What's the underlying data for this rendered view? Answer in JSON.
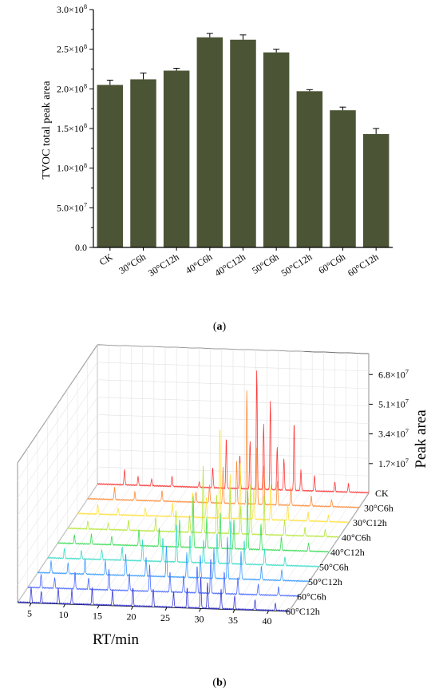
{
  "chart_data": [
    {
      "type": "bar",
      "panel_label": "a",
      "ylabel": "TVOC total peak area",
      "categories": [
        "CK",
        "30°C6h",
        "30°C12h",
        "40°C6h",
        "40°C12h",
        "50°C6h",
        "50°C12h",
        "60°C6h",
        "60°C12h"
      ],
      "values": [
        205000000.0,
        212000000.0,
        223000000.0,
        265000000.0,
        262000000.0,
        246000000.0,
        197000000.0,
        173000000.0,
        143000000.0
      ],
      "errors": [
        6000000.0,
        8000000.0,
        3000000.0,
        5000000.0,
        6000000.0,
        4000000.0,
        2000000.0,
        4000000.0,
        7000000.0
      ],
      "ylim": [
        0,
        300000000.0
      ],
      "yticks": [
        {
          "value": 0,
          "mantissa": "0.0",
          "exp": ""
        },
        {
          "value": 50000000.0,
          "mantissa": "5.0×10",
          "exp": "7"
        },
        {
          "value": 100000000.0,
          "mantissa": "1.0×10",
          "exp": "8"
        },
        {
          "value": 150000000.0,
          "mantissa": "1.5×10",
          "exp": "8"
        },
        {
          "value": 200000000.0,
          "mantissa": "2.0×10",
          "exp": "8"
        },
        {
          "value": 250000000.0,
          "mantissa": "2.5×10",
          "exp": "8"
        },
        {
          "value": 300000000.0,
          "mantissa": "3.0×10",
          "exp": "8"
        }
      ],
      "bar_color": "#4b5535"
    },
    {
      "type": "line",
      "style": "3d-waterfall",
      "panel_label": "b",
      "xlabel": "RT/min",
      "zlabel": "Peak area",
      "x_ticks": [
        5,
        10,
        15,
        20,
        25,
        30,
        35,
        40
      ],
      "xlim": [
        3,
        43
      ],
      "z_ticks": [
        {
          "value": 17000000.0,
          "mantissa": "1.7×10",
          "exp": "7"
        },
        {
          "value": 34000000.0,
          "mantissa": "3.4×10",
          "exp": "7"
        },
        {
          "value": 51000000.0,
          "mantissa": "5.1×10",
          "exp": "7"
        },
        {
          "value": 68000000.0,
          "mantissa": "6.8×10",
          "exp": "7"
        }
      ],
      "zlim": [
        0,
        80000000.0
      ],
      "series": [
        {
          "name": "CK",
          "color": "#ff3b3b",
          "peaks": [
            [
              7,
              9000000.0
            ],
            [
              9,
              5000000.0
            ],
            [
              11,
              4000000.0
            ],
            [
              14,
              6000000.0
            ],
            [
              18,
              3000000.0
            ],
            [
              20,
              12000000.0
            ],
            [
              22,
              30000000.0
            ],
            [
              24,
              20000000.0
            ],
            [
              25.5,
              28000000.0
            ],
            [
              26.5,
              69000000.0
            ],
            [
              27.5,
              38000000.0
            ],
            [
              28.5,
              52000000.0
            ],
            [
              29.5,
              25000000.0
            ],
            [
              30.5,
              18000000.0
            ],
            [
              32,
              40000000.0
            ],
            [
              33,
              12000000.0
            ],
            [
              35,
              9000000.0
            ],
            [
              38,
              6000000.0
            ],
            [
              40,
              5000000.0
            ]
          ]
        },
        {
          "name": "30°C6h",
          "color": "#ff8c3b",
          "peaks": [
            [
              7,
              7000000.0
            ],
            [
              10,
              5000000.0
            ],
            [
              14,
              6000000.0
            ],
            [
              19,
              6000000.0
            ],
            [
              21,
              10000000.0
            ],
            [
              23,
              21000000.0
            ],
            [
              25,
              24000000.0
            ],
            [
              26.5,
              66000000.0
            ],
            [
              28,
              35000000.0
            ],
            [
              29,
              22000000.0
            ],
            [
              31,
              14000000.0
            ],
            [
              33,
              10000000.0
            ],
            [
              36,
              6000000.0
            ],
            [
              39,
              4000000.0
            ]
          ]
        },
        {
          "name": "30°C12h",
          "color": "#ffe03b",
          "peaks": [
            [
              6,
              6000000.0
            ],
            [
              9,
              4000000.0
            ],
            [
              13,
              5000000.0
            ],
            [
              17,
              8000000.0
            ],
            [
              20,
              15000000.0
            ],
            [
              22,
              12000000.0
            ],
            [
              24,
              55000000.0
            ],
            [
              25.5,
              26000000.0
            ],
            [
              27,
              32000000.0
            ],
            [
              29,
              18000000.0
            ],
            [
              31.5,
              20000000.0
            ],
            [
              34,
              10000000.0
            ],
            [
              37,
              5000000.0
            ],
            [
              40,
              4000000.0
            ]
          ]
        },
        {
          "name": "40°C6h",
          "color": "#b6e63b",
          "peaks": [
            [
              6,
              5000000.0
            ],
            [
              9,
              4000000.0
            ],
            [
              12,
              6000000.0
            ],
            [
              16,
              8000000.0
            ],
            [
              19,
              12000000.0
            ],
            [
              21,
              10000000.0
            ],
            [
              23,
              38000000.0
            ],
            [
              25,
              22000000.0
            ],
            [
              27,
              26000000.0
            ],
            [
              28.5,
              16000000.0
            ],
            [
              30,
              30000000.0
            ],
            [
              32,
              24000000.0
            ],
            [
              35,
              9000000.0
            ],
            [
              38,
              5000000.0
            ],
            [
              41,
              4000000.0
            ]
          ]
        },
        {
          "name": "40°C12h",
          "color": "#3bdc57",
          "peaks": [
            [
              5.5,
              5000000.0
            ],
            [
              8,
              6000000.0
            ],
            [
              11,
              5000000.0
            ],
            [
              15,
              9000000.0
            ],
            [
              18,
              11000000.0
            ],
            [
              21,
              16000000.0
            ],
            [
              23,
              29000000.0
            ],
            [
              25,
              18000000.0
            ],
            [
              27,
              20000000.0
            ],
            [
              29,
              17000000.0
            ],
            [
              31,
              33000000.0
            ],
            [
              33,
              15000000.0
            ],
            [
              36,
              8000000.0
            ],
            [
              40,
              5000000.0
            ]
          ]
        },
        {
          "name": "50°C6h",
          "color": "#3bdcc8",
          "peaks": [
            [
              5.5,
              6000000.0
            ],
            [
              8,
              5000000.0
            ],
            [
              11,
              6000000.0
            ],
            [
              14,
              8000000.0
            ],
            [
              17,
              12000000.0
            ],
            [
              20,
              14000000.0
            ],
            [
              22,
              23000000.0
            ],
            [
              24,
              16000000.0
            ],
            [
              26,
              14000000.0
            ],
            [
              28,
              18000000.0
            ],
            [
              30,
              26000000.0
            ],
            [
              32,
              14000000.0
            ],
            [
              35,
              9000000.0
            ],
            [
              38,
              5000000.0
            ]
          ]
        },
        {
          "name": "50°C12h",
          "color": "#3b9bff",
          "peaks": [
            [
              5,
              7000000.0
            ],
            [
              7.5,
              6000000.0
            ],
            [
              10,
              9000000.0
            ],
            [
              13,
              8000000.0
            ],
            [
              16,
              13000000.0
            ],
            [
              19,
              11000000.0
            ],
            [
              22,
              19000000.0
            ],
            [
              25,
              14000000.0
            ],
            [
              27,
              13000000.0
            ],
            [
              29,
              17000000.0
            ],
            [
              31,
              24000000.0
            ],
            [
              33,
              16000000.0
            ],
            [
              36,
              8000000.0
            ],
            [
              39,
              6000000.0
            ]
          ]
        },
        {
          "name": "60°C6h",
          "color": "#4b6bff",
          "peaks": [
            [
              5,
              8000000.0
            ],
            [
              7,
              6000000.0
            ],
            [
              10,
              10000000.0
            ],
            [
              12,
              7000000.0
            ],
            [
              15,
              12000000.0
            ],
            [
              18,
              10000000.0
            ],
            [
              21,
              15000000.0
            ],
            [
              24,
              12000000.0
            ],
            [
              26,
              10000000.0
            ],
            [
              28,
              16000000.0
            ],
            [
              30,
              21000000.0
            ],
            [
              32,
              13000000.0
            ],
            [
              34,
              10000000.0
            ],
            [
              37,
              6000000.0
            ],
            [
              40,
              5000000.0
            ]
          ]
        },
        {
          "name": "60°C12h",
          "color": "#3b3bd8",
          "peaks": [
            [
              5,
              9000000.0
            ],
            [
              6.5,
              7000000.0
            ],
            [
              9,
              9000000.0
            ],
            [
              11,
              8000000.0
            ],
            [
              14,
              10000000.0
            ],
            [
              17,
              9000000.0
            ],
            [
              20,
              11000000.0
            ],
            [
              23,
              10000000.0
            ],
            [
              26,
              9000000.0
            ],
            [
              28,
              12000000.0
            ],
            [
              30,
              19000000.0
            ],
            [
              31,
              15000000.0
            ],
            [
              33,
              11000000.0
            ],
            [
              35,
              8000000.0
            ],
            [
              38,
              6000000.0
            ],
            [
              41,
              4000000.0
            ]
          ]
        }
      ]
    }
  ]
}
